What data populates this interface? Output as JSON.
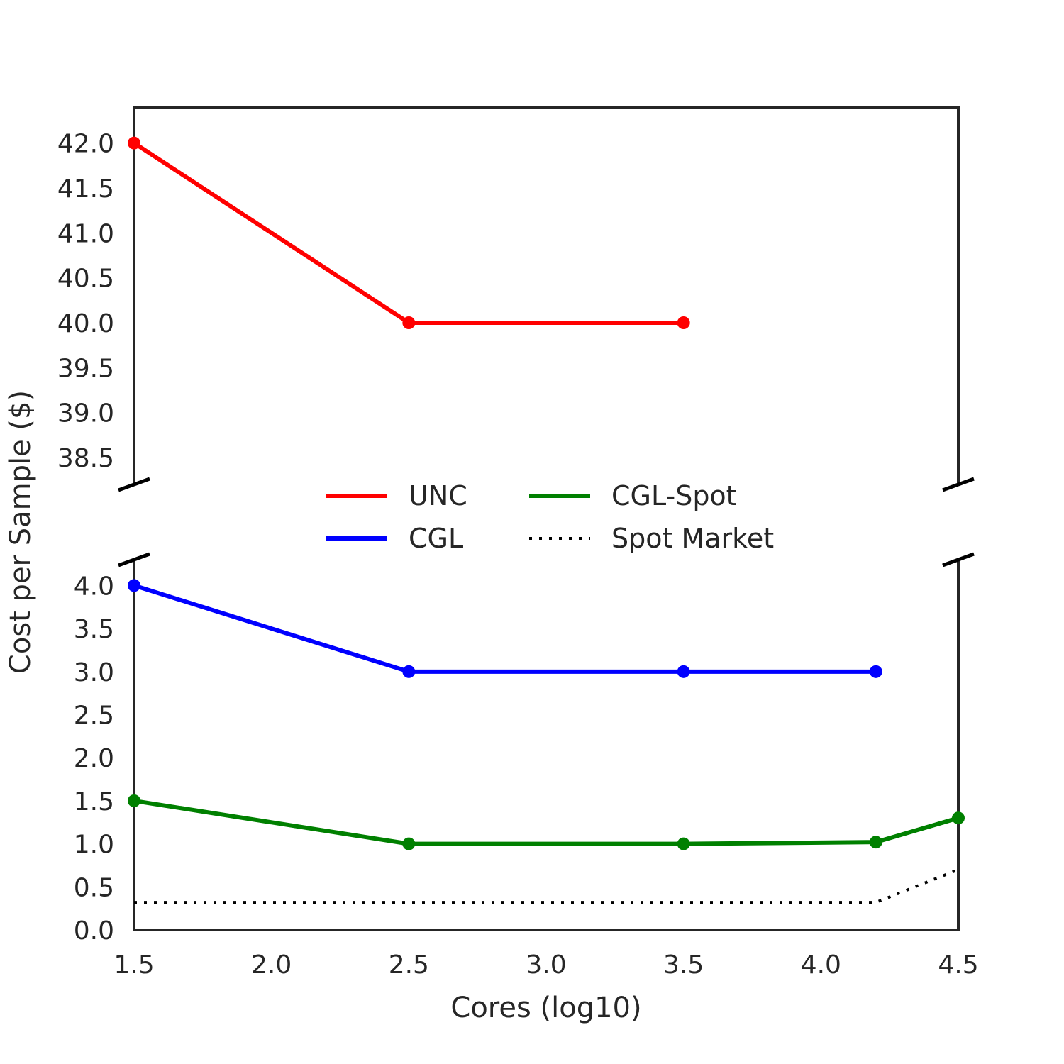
{
  "chart_data": {
    "type": "line",
    "broken_y_axis": true,
    "xlabel": "Cores (log10)",
    "ylabel": "Cost per Sample ($)",
    "xlim": [
      1.5,
      4.5
    ],
    "x_ticks": [
      "1.5",
      "2.0",
      "2.5",
      "3.0",
      "3.5",
      "4.0",
      "4.5"
    ],
    "top_panel": {
      "ylim": [
        38.2,
        42.4
      ],
      "y_ticks": [
        "38.5",
        "39.0",
        "39.5",
        "40.0",
        "40.5",
        "41.0",
        "41.5",
        "42.0"
      ]
    },
    "bottom_panel": {
      "ylim": [
        0.0,
        4.3
      ],
      "y_ticks": [
        "0.0",
        "0.5",
        "1.0",
        "1.5",
        "2.0",
        "2.5",
        "3.0",
        "3.5",
        "4.0"
      ]
    },
    "grid": false,
    "legend_position": "center",
    "series": [
      {
        "name": "UNC",
        "panel": "top",
        "color": "#ff0000",
        "style": "solid",
        "markers": true,
        "x": [
          1.5,
          2.5,
          3.5
        ],
        "y": [
          42.0,
          40.0,
          40.0
        ]
      },
      {
        "name": "CGL",
        "panel": "bottom",
        "color": "#0000ff",
        "style": "solid",
        "markers": true,
        "x": [
          1.5,
          2.5,
          3.5,
          4.2
        ],
        "y": [
          4.0,
          3.0,
          3.0,
          3.0
        ]
      },
      {
        "name": "CGL-Spot",
        "panel": "bottom",
        "color": "#008000",
        "style": "solid",
        "markers": true,
        "x": [
          1.5,
          2.5,
          3.5,
          4.2,
          4.5
        ],
        "y": [
          1.5,
          1.0,
          1.0,
          1.02,
          1.3
        ]
      },
      {
        "name": "Spot Market",
        "panel": "bottom",
        "color": "#000000",
        "style": "dotted",
        "markers": false,
        "x": [
          1.5,
          2.5,
          3.5,
          4.2,
          4.5
        ],
        "y": [
          0.32,
          0.32,
          0.32,
          0.32,
          0.7
        ]
      }
    ],
    "legend": {
      "columns": [
        [
          "UNC",
          "CGL"
        ],
        [
          "CGL-Spot",
          "Spot Market"
        ]
      ]
    }
  }
}
